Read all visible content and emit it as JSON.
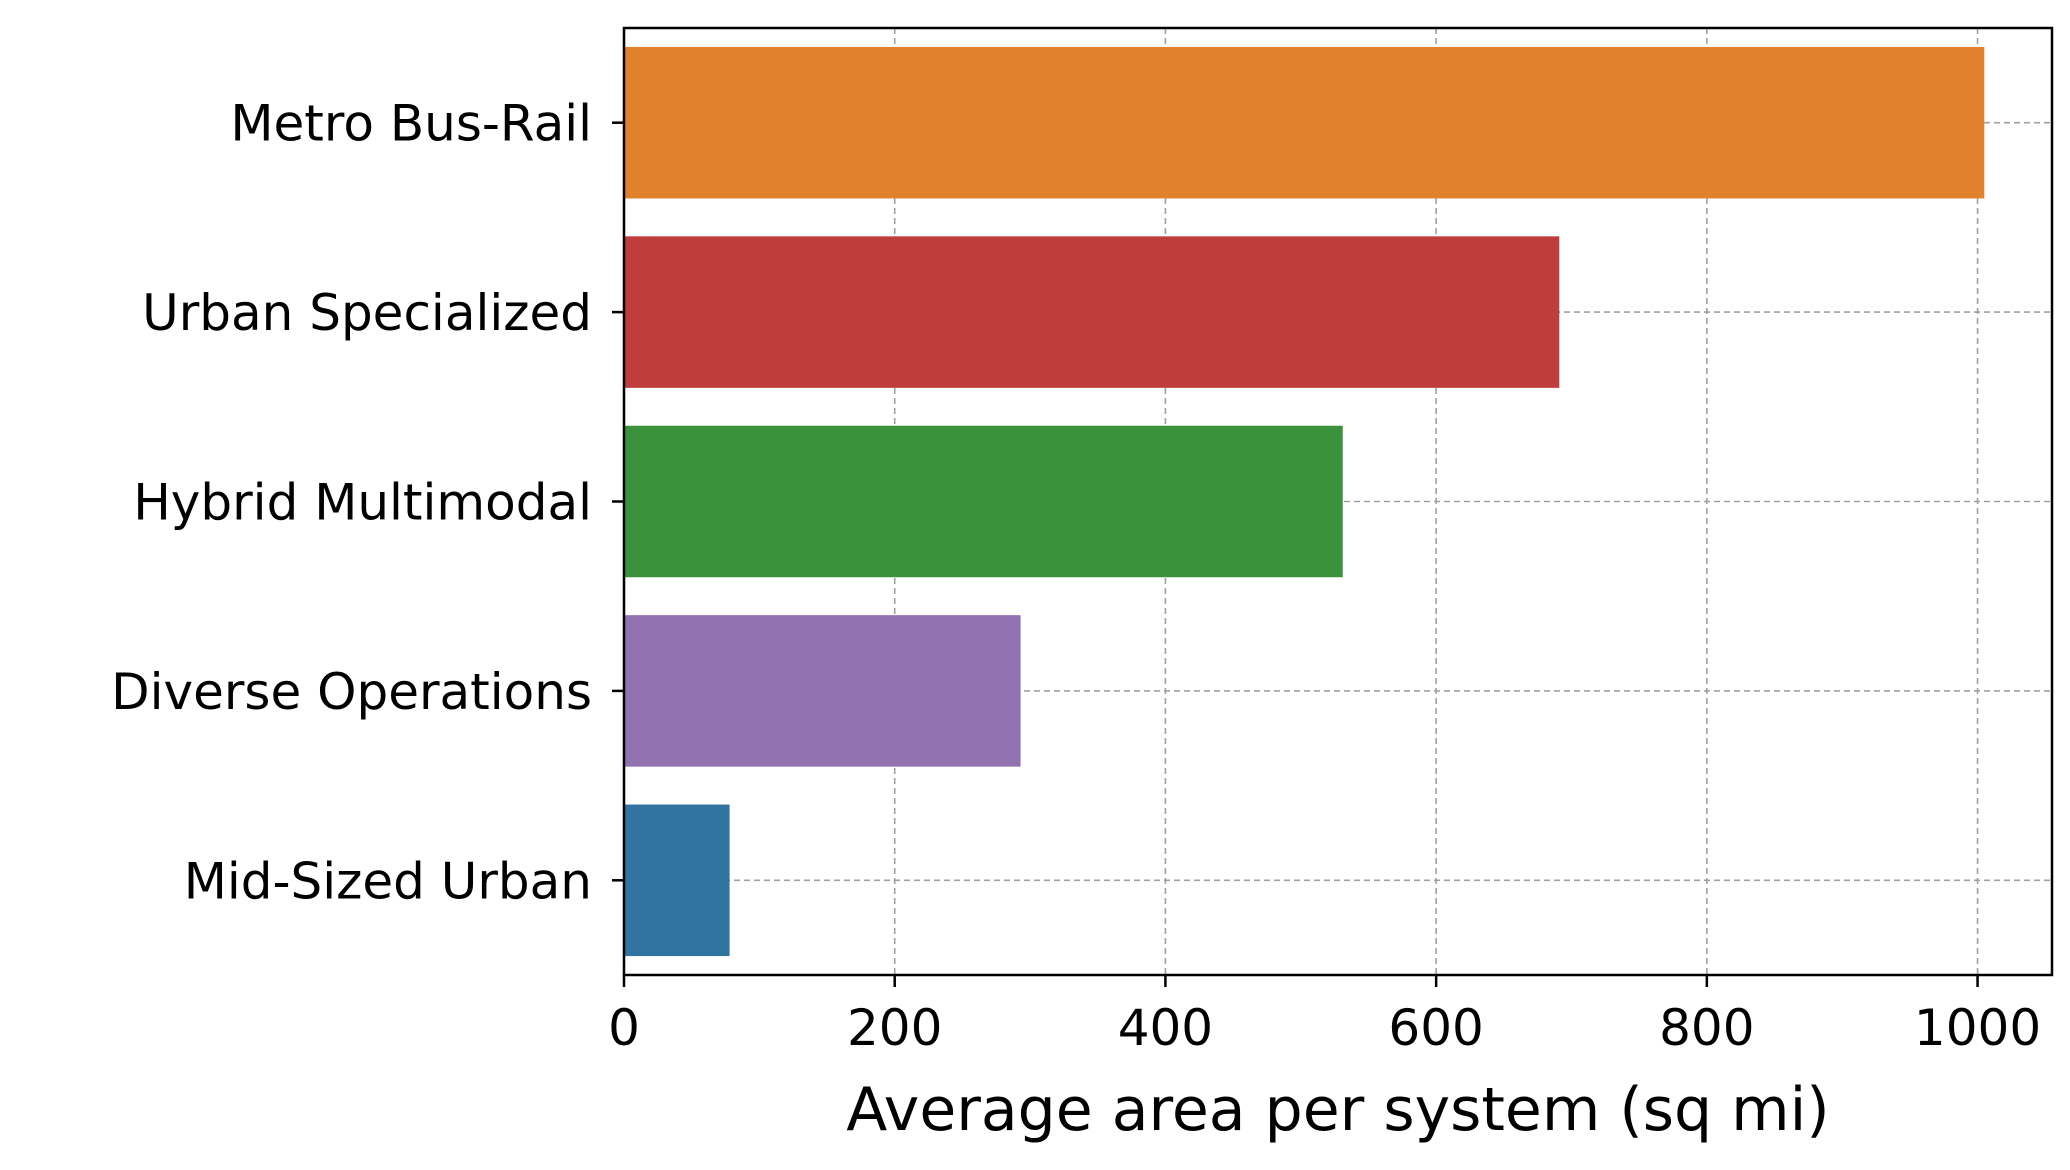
{
  "chart_data": {
    "type": "bar",
    "orientation": "horizontal",
    "title": "",
    "xlabel": "Average area per system (sq mi)",
    "ylabel": "",
    "xlim": [
      0,
      1055
    ],
    "xticks": [
      0,
      200,
      400,
      600,
      800,
      1000
    ],
    "xtick_labels": [
      "0",
      "200",
      "400",
      "600",
      "800",
      "1000"
    ],
    "grid": true,
    "grid_style": "dashed",
    "legend": "none",
    "categories": [
      "Metro Bus-Rail",
      "Urban Specialized",
      "Hybrid Multimodal",
      "Diverse Operations",
      "Mid-Sized Urban"
    ],
    "values": [
      1005,
      691,
      531,
      293,
      78
    ],
    "colors": [
      "#e1812c",
      "#c03d3e",
      "#3a923a",
      "#9372b2",
      "#3274a1"
    ]
  }
}
